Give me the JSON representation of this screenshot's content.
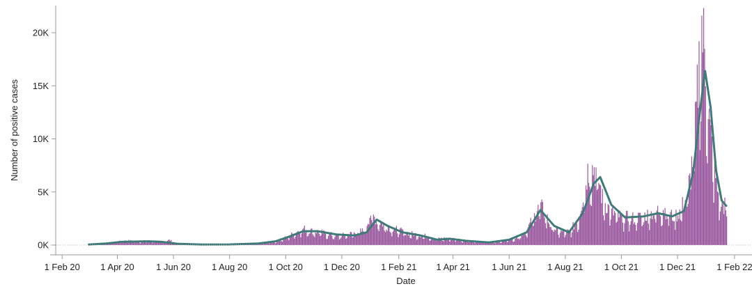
{
  "chart_data": {
    "type": "bar",
    "title": "",
    "xlabel": "Date",
    "ylabel": "Number of positive cases",
    "ylim": [
      0,
      22000
    ],
    "xlim": [
      "2020-01-25",
      "2022-02-20"
    ],
    "grid": false,
    "legend": "none",
    "y_ticks": [
      {
        "value": 0,
        "label": "0K"
      },
      {
        "value": 5000,
        "label": "5K"
      },
      {
        "value": 10000,
        "label": "10K"
      },
      {
        "value": 15000,
        "label": "15K"
      },
      {
        "value": 20000,
        "label": "20K"
      }
    ],
    "x_ticks": [
      {
        "date": "2020-02-01",
        "label": "1 Feb 20"
      },
      {
        "date": "2020-04-01",
        "label": "1 Apr 20"
      },
      {
        "date": "2020-06-01",
        "label": "1 Jun 20"
      },
      {
        "date": "2020-08-01",
        "label": "1 Aug 20"
      },
      {
        "date": "2020-10-01",
        "label": "1 Oct 20"
      },
      {
        "date": "2020-12-01",
        "label": "1 Dec 20"
      },
      {
        "date": "2021-02-01",
        "label": "1 Feb 21"
      },
      {
        "date": "2021-04-01",
        "label": "1 Apr 21"
      },
      {
        "date": "2021-06-01",
        "label": "1 Jun 21"
      },
      {
        "date": "2021-08-01",
        "label": "1 Aug 21"
      },
      {
        "date": "2021-10-01",
        "label": "1 Oct 21"
      },
      {
        "date": "2021-12-01",
        "label": "1 Dec 21"
      },
      {
        "date": "2022-02-01",
        "label": "1 Feb 22"
      }
    ],
    "series": [
      {
        "kind": "bar",
        "color": "#9b59a0",
        "points": [
          [
            "2020-03-01",
            20
          ],
          [
            "2020-03-15",
            80
          ],
          [
            "2020-03-25",
            200
          ],
          [
            "2020-04-05",
            380
          ],
          [
            "2020-04-12",
            420
          ],
          [
            "2020-04-20",
            350
          ],
          [
            "2020-05-01",
            380
          ],
          [
            "2020-05-10",
            350
          ],
          [
            "2020-05-20",
            300
          ],
          [
            "2020-05-27",
            480
          ],
          [
            "2020-06-05",
            120
          ],
          [
            "2020-06-20",
            60
          ],
          [
            "2020-07-10",
            50
          ],
          [
            "2020-07-25",
            60
          ],
          [
            "2020-08-10",
            80
          ],
          [
            "2020-08-25",
            120
          ],
          [
            "2020-09-05",
            180
          ],
          [
            "2020-09-15",
            250
          ],
          [
            "2020-09-25",
            500
          ],
          [
            "2020-10-05",
            900
          ],
          [
            "2020-10-12",
            1300
          ],
          [
            "2020-10-20",
            1600
          ],
          [
            "2020-10-28",
            1400
          ],
          [
            "2020-11-05",
            1300
          ],
          [
            "2020-11-15",
            1100
          ],
          [
            "2020-11-25",
            900
          ],
          [
            "2020-12-05",
            1000
          ],
          [
            "2020-12-15",
            1200
          ],
          [
            "2020-12-25",
            1400
          ],
          [
            "2021-01-01",
            3100
          ],
          [
            "2021-01-05",
            2700
          ],
          [
            "2021-01-10",
            2300
          ],
          [
            "2021-01-20",
            1800
          ],
          [
            "2021-02-01",
            1400
          ],
          [
            "2021-02-15",
            1100
          ],
          [
            "2021-03-01",
            900
          ],
          [
            "2021-03-15",
            600
          ],
          [
            "2021-03-25",
            700
          ],
          [
            "2021-04-10",
            500
          ],
          [
            "2021-04-25",
            350
          ],
          [
            "2021-05-10",
            300
          ],
          [
            "2021-05-25",
            400
          ],
          [
            "2021-06-10",
            800
          ],
          [
            "2021-06-20",
            1500
          ],
          [
            "2021-06-28",
            2800
          ],
          [
            "2021-07-02",
            3900
          ],
          [
            "2021-07-08",
            3400
          ],
          [
            "2021-07-15",
            2000
          ],
          [
            "2021-07-25",
            1300
          ],
          [
            "2021-08-05",
            1300
          ],
          [
            "2021-08-15",
            2500
          ],
          [
            "2021-08-20",
            5000
          ],
          [
            "2021-08-25",
            7200
          ],
          [
            "2021-09-01",
            7500
          ],
          [
            "2021-09-05",
            6800
          ],
          [
            "2021-09-10",
            4500
          ],
          [
            "2021-09-20",
            3200
          ],
          [
            "2021-10-01",
            2700
          ],
          [
            "2021-10-15",
            2600
          ],
          [
            "2021-10-25",
            2800
          ],
          [
            "2021-11-05",
            3200
          ],
          [
            "2021-11-15",
            3600
          ],
          [
            "2021-11-25",
            2800
          ],
          [
            "2021-12-01",
            3000
          ],
          [
            "2021-12-10",
            4500
          ],
          [
            "2021-12-15",
            6800
          ],
          [
            "2021-12-20",
            11200
          ],
          [
            "2021-12-24",
            17500
          ],
          [
            "2021-12-27",
            21400
          ],
          [
            "2021-12-30",
            18400
          ],
          [
            "2022-01-02",
            15000
          ],
          [
            "2022-01-05",
            11000
          ],
          [
            "2022-01-10",
            7000
          ],
          [
            "2022-01-15",
            4400
          ],
          [
            "2022-01-20",
            3800
          ],
          [
            "2022-01-23",
            4500
          ]
        ]
      },
      {
        "kind": "line",
        "color": "#3d7a78",
        "points": [
          [
            "2020-03-01",
            50
          ],
          [
            "2020-03-20",
            150
          ],
          [
            "2020-04-05",
            300
          ],
          [
            "2020-04-20",
            330
          ],
          [
            "2020-05-05",
            350
          ],
          [
            "2020-05-20",
            300
          ],
          [
            "2020-06-05",
            120
          ],
          [
            "2020-07-01",
            50
          ],
          [
            "2020-08-01",
            60
          ],
          [
            "2020-09-01",
            150
          ],
          [
            "2020-09-20",
            350
          ],
          [
            "2020-10-05",
            800
          ],
          [
            "2020-10-20",
            1300
          ],
          [
            "2020-11-05",
            1300
          ],
          [
            "2020-11-25",
            1000
          ],
          [
            "2020-12-15",
            900
          ],
          [
            "2020-12-28",
            1200
          ],
          [
            "2021-01-08",
            2400
          ],
          [
            "2021-01-20",
            1800
          ],
          [
            "2021-02-05",
            1200
          ],
          [
            "2021-02-25",
            900
          ],
          [
            "2021-03-15",
            500
          ],
          [
            "2021-03-28",
            600
          ],
          [
            "2021-04-15",
            400
          ],
          [
            "2021-05-10",
            250
          ],
          [
            "2021-06-01",
            500
          ],
          [
            "2021-06-20",
            1200
          ],
          [
            "2021-07-05",
            3300
          ],
          [
            "2021-07-20",
            1800
          ],
          [
            "2021-08-05",
            1200
          ],
          [
            "2021-08-20",
            3000
          ],
          [
            "2021-09-01",
            5800
          ],
          [
            "2021-09-08",
            6400
          ],
          [
            "2021-09-20",
            3800
          ],
          [
            "2021-10-05",
            2600
          ],
          [
            "2021-10-25",
            2700
          ],
          [
            "2021-11-10",
            3000
          ],
          [
            "2021-11-25",
            2700
          ],
          [
            "2021-12-08",
            3200
          ],
          [
            "2021-12-18",
            6800
          ],
          [
            "2021-12-26",
            13000
          ],
          [
            "2021-12-31",
            16400
          ],
          [
            "2022-01-06",
            13000
          ],
          [
            "2022-01-12",
            7000
          ],
          [
            "2022-01-18",
            4200
          ],
          [
            "2022-01-23",
            3700
          ]
        ]
      }
    ]
  }
}
